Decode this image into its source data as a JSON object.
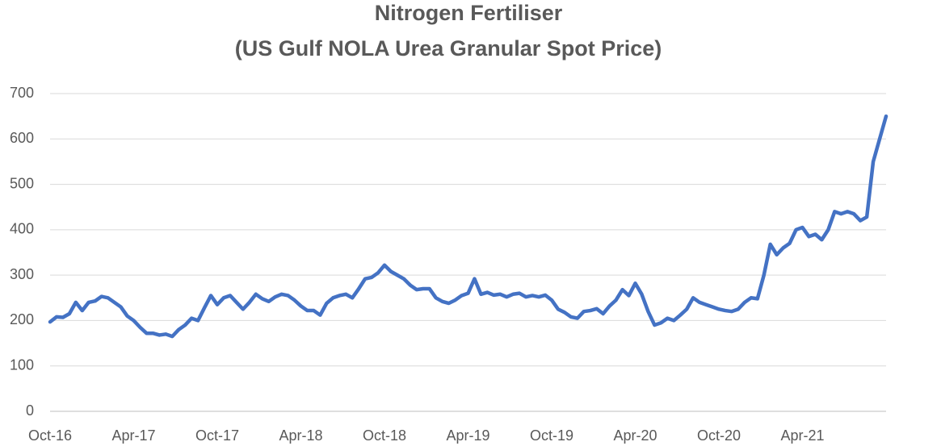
{
  "chart_data": {
    "type": "line",
    "title": "Nitrogen Fertiliser",
    "subtitle": "(US Gulf NOLA Urea Granular Spot Price)",
    "categories": [
      "Oct-16",
      null,
      null,
      null,
      null,
      null,
      null,
      null,
      null,
      null,
      null,
      null,
      null,
      "Apr-17",
      null,
      null,
      null,
      null,
      null,
      null,
      null,
      null,
      null,
      null,
      null,
      null,
      "Oct-17",
      null,
      null,
      null,
      null,
      null,
      null,
      null,
      null,
      null,
      null,
      null,
      null,
      "Apr-18",
      null,
      null,
      null,
      null,
      null,
      null,
      null,
      null,
      null,
      null,
      null,
      null,
      "Oct-18",
      null,
      null,
      null,
      null,
      null,
      null,
      null,
      null,
      null,
      null,
      null,
      null,
      "Apr-19",
      null,
      null,
      null,
      null,
      null,
      null,
      null,
      null,
      null,
      null,
      null,
      null,
      "Oct-19",
      null,
      null,
      null,
      null,
      null,
      null,
      null,
      null,
      null,
      null,
      null,
      null,
      "Apr-20",
      null,
      null,
      null,
      null,
      null,
      null,
      null,
      null,
      null,
      null,
      null,
      null,
      "Oct-20",
      null,
      null,
      null,
      null,
      null,
      null,
      null,
      null,
      null,
      null,
      null,
      null,
      "Apr-21",
      null,
      null,
      null,
      null,
      null,
      null,
      null,
      null,
      null,
      null,
      null,
      null,
      null
    ],
    "series": [
      {
        "color": "#4472c4",
        "values": [
          197,
          208,
          207,
          215,
          240,
          222,
          240,
          243,
          253,
          250,
          240,
          230,
          210,
          200,
          185,
          172,
          172,
          168,
          170,
          165,
          180,
          190,
          205,
          200,
          228,
          255,
          235,
          250,
          255,
          240,
          225,
          240,
          258,
          248,
          242,
          252,
          258,
          255,
          245,
          232,
          222,
          222,
          212,
          238,
          250,
          255,
          258,
          250,
          270,
          292,
          295,
          305,
          322,
          308,
          300,
          292,
          278,
          268,
          270,
          270,
          250,
          242,
          238,
          245,
          255,
          260,
          292,
          258,
          262,
          256,
          258,
          252,
          258,
          260,
          252,
          255,
          252,
          256,
          245,
          225,
          218,
          208,
          205,
          220,
          222,
          226,
          215,
          232,
          245,
          268,
          255,
          282,
          258,
          220,
          190,
          195,
          205,
          200,
          212,
          225,
          250,
          240,
          235,
          230,
          225,
          222,
          220,
          225,
          240,
          250,
          248,
          300,
          368,
          345,
          360,
          370,
          400,
          405,
          385,
          390,
          378,
          400,
          440,
          435,
          440,
          435,
          420,
          428,
          550,
          600,
          650
        ]
      }
    ],
    "ylim": [
      0,
      700
    ],
    "yticks": [
      0,
      100,
      200,
      300,
      400,
      500,
      600,
      700
    ],
    "grid": true
  }
}
